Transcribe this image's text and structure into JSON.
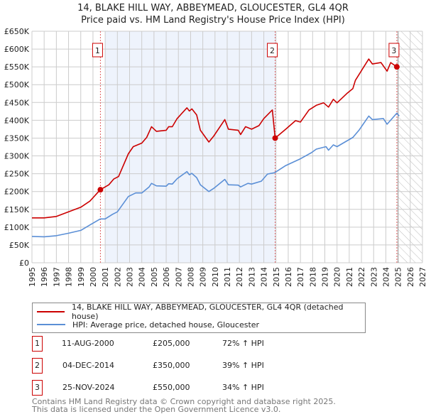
{
  "title": "14, BLAKE HILL WAY, ABBEYMEAD, GLOUCESTER, GL4 4QR",
  "subtitle": "Price paid vs. HM Land Registry's House Price Index (HPI)",
  "colors": {
    "property": "#cc0000",
    "hpi": "#5b8fd6",
    "shade": "#eef3fc",
    "grid": "#cccccc"
  },
  "chart_data": {
    "type": "line",
    "xlim": [
      1995,
      2027
    ],
    "ylim": [
      0,
      650000
    ],
    "yticks": [
      0,
      50000,
      100000,
      150000,
      200000,
      250000,
      300000,
      350000,
      400000,
      450000,
      500000,
      550000,
      600000,
      650000
    ],
    "ytick_labels": [
      "£0",
      "£50K",
      "£100K",
      "£150K",
      "£200K",
      "£250K",
      "£300K",
      "£350K",
      "£400K",
      "£450K",
      "£500K",
      "£550K",
      "£600K",
      "£650K"
    ],
    "xticks": [
      1995,
      1996,
      1997,
      1998,
      1999,
      2000,
      2001,
      2002,
      2003,
      2004,
      2005,
      2006,
      2007,
      2008,
      2009,
      2010,
      2011,
      2012,
      2013,
      2014,
      2015,
      2016,
      2017,
      2018,
      2019,
      2020,
      2021,
      2022,
      2023,
      2024,
      2025,
      2026,
      2027
    ],
    "grid": true,
    "shaded_period": [
      2001,
      2015
    ],
    "forecast_hatch_from": 2025,
    "series": [
      {
        "name": "14, BLAKE HILL WAY, ABBEYMEAD, GLOUCESTER, GL4 4QR (detached house)",
        "color": "#cc0000",
        "x": [
          1995,
          1996,
          1997,
          1998,
          1999,
          1999.75,
          2000.6,
          2001.3,
          2001.7,
          2002.1,
          2002.9,
          2003.3,
          2004,
          2004.4,
          2004.8,
          2005.2,
          2006,
          2006.2,
          2006.5,
          2006.9,
          2007.7,
          2007.9,
          2008.1,
          2008.5,
          2008.8,
          2009.5,
          2009.9,
          2010.8,
          2011.1,
          2011.9,
          2012.1,
          2012.5,
          2013,
          2013.6,
          2014,
          2014.7,
          2014.93,
          2015.8,
          2016.6,
          2017,
          2017.7,
          2018.3,
          2018.9,
          2019.3,
          2019.7,
          2020,
          2020.8,
          2021.3,
          2021.5,
          2022.1,
          2022.6,
          2022.9,
          2023.6,
          2024.1,
          2024.4,
          2024.9
        ],
        "y": [
          126000,
          126000,
          130000,
          143000,
          156000,
          173000,
          205000,
          219000,
          235000,
          242000,
          306000,
          326000,
          336000,
          352000,
          382000,
          369000,
          372000,
          382000,
          382000,
          405000,
          435000,
          426000,
          432000,
          415000,
          372000,
          339000,
          356000,
          402000,
          375000,
          372000,
          360000,
          382000,
          375000,
          385000,
          405000,
          429000,
          350000,
          375000,
          399000,
          395000,
          429000,
          442000,
          449000,
          437000,
          459000,
          449000,
          475000,
          489000,
          512000,
          545000,
          572000,
          558000,
          562000,
          538000,
          562000,
          550000
        ]
      },
      {
        "name": "HPI: Average price, detached house, Gloucester",
        "color": "#5b8fd6",
        "x": [
          1995,
          1996,
          1997,
          1998,
          1999,
          1999.75,
          2000.6,
          2001,
          2001.6,
          2002,
          2002.9,
          2003.5,
          2004,
          2004.6,
          2004.8,
          2005.2,
          2006,
          2006.2,
          2006.5,
          2006.9,
          2007.7,
          2007.9,
          2008.1,
          2008.5,
          2008.8,
          2009.5,
          2009.9,
          2010.8,
          2011.1,
          2011.9,
          2012.1,
          2012.7,
          2013,
          2013.8,
          2014.3,
          2014.9,
          2015.8,
          2017,
          2017.9,
          2018.3,
          2019.1,
          2019.3,
          2019.7,
          2020,
          2020.8,
          2021.3,
          2021.8,
          2022.6,
          2022.9,
          2023.8,
          2024.1,
          2024.9,
          2025.1
        ],
        "y": [
          74000,
          73000,
          76000,
          83000,
          91000,
          106000,
          123000,
          123000,
          136000,
          143000,
          186000,
          196000,
          196000,
          213000,
          223000,
          216000,
          215000,
          222000,
          221000,
          236000,
          256000,
          247000,
          251000,
          239000,
          219000,
          200000,
          209000,
          234000,
          219000,
          218000,
          213000,
          223000,
          221000,
          229000,
          249000,
          253000,
          273000,
          292000,
          309000,
          319000,
          326000,
          316000,
          331000,
          326000,
          342000,
          352000,
          372000,
          412000,
          402000,
          405000,
          389000,
          420000,
          412000
        ]
      }
    ],
    "sales": [
      {
        "label": "1",
        "x": 2000.61,
        "y": 205000
      },
      {
        "label": "2",
        "x": 2014.93,
        "y": 350000
      },
      {
        "label": "3",
        "x": 2024.9,
        "y": 550000
      }
    ]
  },
  "legend": {
    "property": "14, BLAKE HILL WAY, ABBEYMEAD, GLOUCESTER, GL4 4QR (detached house)",
    "hpi": "HPI: Average price, detached house, Gloucester"
  },
  "transactions": [
    {
      "num": "1",
      "date": "11-AUG-2000",
      "price": "£205,000",
      "hpi": "72% ↑ HPI"
    },
    {
      "num": "2",
      "date": "04-DEC-2014",
      "price": "£350,000",
      "hpi": "39% ↑ HPI"
    },
    {
      "num": "3",
      "date": "25-NOV-2024",
      "price": "£550,000",
      "hpi": "34% ↑ HPI"
    }
  ],
  "footer": {
    "line1": "Contains HM Land Registry data © Crown copyright and database right 2025.",
    "line2": "This data is licensed under the Open Government Licence v3.0."
  }
}
